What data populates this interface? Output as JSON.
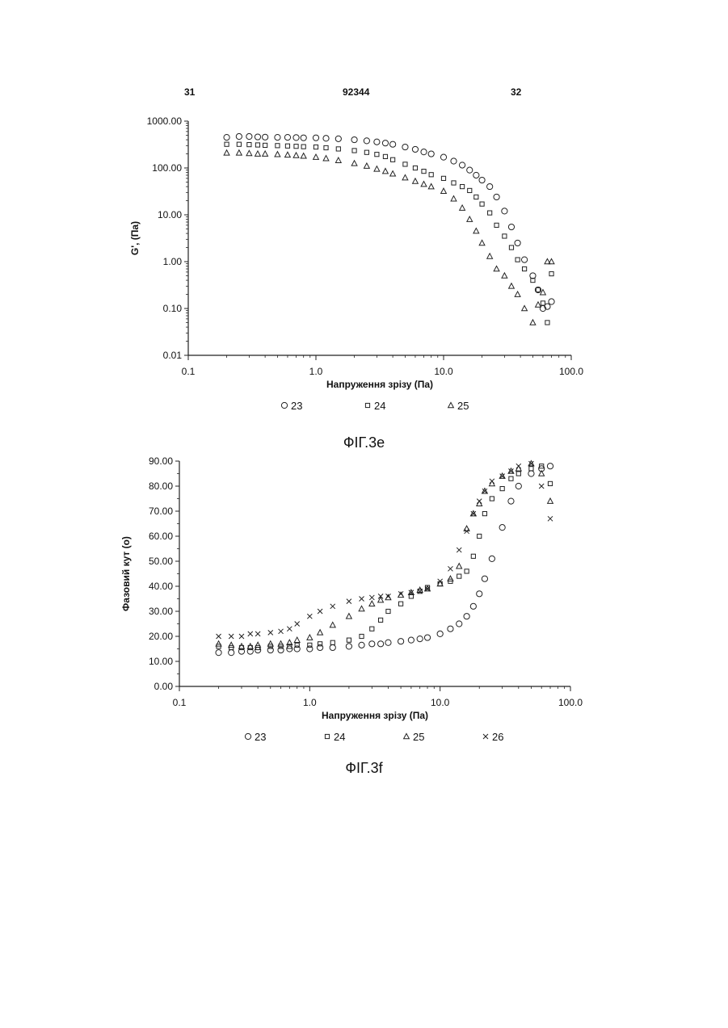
{
  "header": {
    "left": "31",
    "center": "92344",
    "right": "32"
  },
  "figure_captions": [
    "ФІГ.3e",
    "ФІГ.3f"
  ],
  "chart_data": [
    {
      "type": "scatter",
      "title": "",
      "xlabel": "Напруження зрізу (Па)",
      "ylabel": "G', (Па)",
      "xscale": "log",
      "yscale": "log",
      "xlim": [
        0.1,
        100
      ],
      "ylim": [
        0.01,
        1000
      ],
      "xticks": [
        "0.1",
        "1.0",
        "10.0",
        "100.0"
      ],
      "yticks": [
        "0.01",
        "0.10",
        "1.00",
        "10.00",
        "100.00",
        "1000.00"
      ],
      "legend_position": "bottom",
      "series": [
        {
          "name": "23",
          "marker": "circle",
          "x": [
            0.2,
            0.25,
            0.3,
            0.35,
            0.4,
            0.5,
            0.6,
            0.7,
            0.8,
            1.0,
            1.2,
            1.5,
            2.0,
            2.5,
            3.0,
            3.5,
            4.0,
            5.0,
            6.0,
            7.0,
            8.0,
            10.0,
            12.0,
            14.0,
            16.0,
            18.0,
            20.0,
            23.0,
            26.0,
            30.0,
            34.0,
            38.0,
            43.0,
            50.0,
            55.0,
            60.0,
            65.0,
            70.0
          ],
          "y": [
            450,
            470,
            470,
            460,
            455,
            450,
            450,
            445,
            440,
            440,
            430,
            420,
            400,
            380,
            360,
            340,
            320,
            280,
            250,
            220,
            200,
            170,
            140,
            115,
            90,
            70,
            55,
            40,
            24,
            12,
            5.5,
            2.5,
            1.1,
            0.5,
            0.25,
            0.1,
            0.11,
            0.14
          ]
        },
        {
          "name": "24",
          "marker": "square",
          "x": [
            0.2,
            0.25,
            0.3,
            0.35,
            0.4,
            0.5,
            0.6,
            0.7,
            0.8,
            1.0,
            1.2,
            1.5,
            2.0,
            2.5,
            3.0,
            3.5,
            4.0,
            5.0,
            6.0,
            7.0,
            8.0,
            10.0,
            12.0,
            14.0,
            16.0,
            18.0,
            20.0,
            23.0,
            26.0,
            30.0,
            34.0,
            38.0,
            43.0,
            50.0,
            55.0,
            60.0,
            65.0,
            70.0
          ],
          "y": [
            320,
            320,
            315,
            310,
            305,
            300,
            295,
            290,
            285,
            280,
            270,
            255,
            235,
            215,
            195,
            175,
            150,
            120,
            100,
            85,
            72,
            60,
            48,
            40,
            33,
            24,
            17,
            11,
            6,
            3.5,
            2.0,
            1.1,
            0.7,
            0.4,
            0.25,
            0.13,
            0.05,
            0.55
          ]
        },
        {
          "name": "25",
          "marker": "triangle",
          "x": [
            0.2,
            0.25,
            0.3,
            0.35,
            0.4,
            0.5,
            0.6,
            0.7,
            0.8,
            1.0,
            1.2,
            1.5,
            2.0,
            2.5,
            3.0,
            3.5,
            4.0,
            5.0,
            6.0,
            7.0,
            8.0,
            10.0,
            12.0,
            14.0,
            16.0,
            18.0,
            20.0,
            23.0,
            26.0,
            30.0,
            34.0,
            38.0,
            43.0,
            50.0,
            55.0,
            60.0,
            65.0,
            70.0
          ],
          "y": [
            210,
            210,
            205,
            200,
            200,
            195,
            190,
            185,
            180,
            170,
            160,
            145,
            125,
            110,
            95,
            85,
            75,
            62,
            52,
            45,
            40,
            32,
            22,
            14,
            8,
            4.5,
            2.5,
            1.3,
            0.7,
            0.5,
            0.3,
            0.2,
            0.1,
            0.05,
            0.12,
            0.22,
            1.0,
            1.0
          ]
        }
      ]
    },
    {
      "type": "scatter",
      "title": "",
      "xlabel": "Напруження зрізу (Па)",
      "ylabel": "Фазовий кут (o)",
      "xscale": "log",
      "xlim": [
        0.1,
        100
      ],
      "ylim": [
        0,
        90
      ],
      "xticks": [
        "0.1",
        "1.0",
        "10.0",
        "100.0"
      ],
      "yticks": [
        "0.00",
        "10.00",
        "20.00",
        "30.00",
        "40.00",
        "50.00",
        "60.00",
        "70.00",
        "80.00",
        "90.00"
      ],
      "legend_position": "bottom",
      "series": [
        {
          "name": "23",
          "marker": "circle",
          "x": [
            0.2,
            0.25,
            0.3,
            0.35,
            0.4,
            0.5,
            0.6,
            0.7,
            0.8,
            1.0,
            1.2,
            1.5,
            2.0,
            2.5,
            3.0,
            3.5,
            4.0,
            5.0,
            6.0,
            7.0,
            8.0,
            10.0,
            12.0,
            14.0,
            16.0,
            18.0,
            20.0,
            22.0,
            25.0,
            30.0,
            35.0,
            40.0,
            50.0,
            60.0,
            70.0
          ],
          "y": [
            13.5,
            13.5,
            14.0,
            14.0,
            14.5,
            14.5,
            14.5,
            15.0,
            15.0,
            15.0,
            15.5,
            15.5,
            16.0,
            16.5,
            17.0,
            17.0,
            17.5,
            18.0,
            18.5,
            19.0,
            19.5,
            21.0,
            23.0,
            25.0,
            28.0,
            32.0,
            37.0,
            43.0,
            51.0,
            63.5,
            74.0,
            80.0,
            85.0,
            87.0,
            88.0
          ]
        },
        {
          "name": "24",
          "marker": "square",
          "x": [
            0.2,
            0.25,
            0.3,
            0.35,
            0.4,
            0.5,
            0.6,
            0.7,
            0.8,
            1.0,
            1.2,
            1.5,
            2.0,
            2.5,
            3.0,
            3.5,
            4.0,
            5.0,
            6.0,
            7.0,
            8.0,
            10.0,
            12.0,
            14.0,
            16.0,
            18.0,
            20.0,
            22.0,
            25.0,
            30.0,
            35.0,
            40.0,
            50.0,
            60.0,
            70.0
          ],
          "y": [
            16.0,
            15.5,
            15.5,
            15.5,
            15.5,
            16.0,
            16.0,
            16.0,
            16.5,
            16.5,
            17.0,
            17.5,
            18.5,
            20.0,
            23.0,
            26.5,
            30.0,
            33.0,
            36.0,
            38.0,
            39.5,
            41.0,
            42.0,
            44.0,
            46.0,
            52.0,
            60.0,
            69.0,
            75.0,
            79.0,
            83.0,
            85.0,
            87.0,
            88.0,
            81.0
          ]
        },
        {
          "name": "25",
          "marker": "triangle",
          "x": [
            0.2,
            0.25,
            0.3,
            0.35,
            0.4,
            0.5,
            0.6,
            0.7,
            0.8,
            1.0,
            1.2,
            1.5,
            2.0,
            2.5,
            3.0,
            3.5,
            4.0,
            5.0,
            6.0,
            7.0,
            8.0,
            10.0,
            12.0,
            14.0,
            16.0,
            18.0,
            20.0,
            22.0,
            25.0,
            30.0,
            35.0,
            40.0,
            50.0,
            60.0,
            70.0
          ],
          "y": [
            17.0,
            16.5,
            16.0,
            16.0,
            16.5,
            17.0,
            17.0,
            17.5,
            18.5,
            19.5,
            21.5,
            24.5,
            28.0,
            31.0,
            33.0,
            34.5,
            35.5,
            36.5,
            37.5,
            38.5,
            39.0,
            41.0,
            43.0,
            48.0,
            63.0,
            69.0,
            73.0,
            78.0,
            81.0,
            84.0,
            86.0,
            87.0,
            89.0,
            85.0,
            74.0
          ]
        },
        {
          "name": "26",
          "marker": "x",
          "x": [
            0.2,
            0.25,
            0.3,
            0.35,
            0.4,
            0.5,
            0.6,
            0.7,
            0.8,
            1.0,
            1.2,
            1.5,
            2.0,
            2.5,
            3.0,
            3.5,
            4.0,
            5.0,
            6.0,
            7.0,
            8.0,
            10.0,
            12.0,
            14.0,
            16.0,
            18.0,
            20.0,
            22.0,
            25.0,
            30.0,
            35.0,
            40.0,
            50.0,
            60.0,
            70.0
          ],
          "y": [
            20.0,
            20.0,
            20.0,
            21.0,
            21.0,
            21.5,
            22.0,
            23.0,
            25.0,
            28.0,
            30.0,
            32.0,
            34.0,
            35.0,
            35.5,
            36.0,
            36.0,
            37.0,
            37.5,
            38.0,
            39.0,
            42.0,
            47.0,
            54.5,
            62.0,
            69.0,
            74.0,
            78.0,
            82.0,
            84.0,
            86.0,
            88.0,
            89.0,
            80.0,
            67.0
          ]
        }
      ]
    }
  ]
}
